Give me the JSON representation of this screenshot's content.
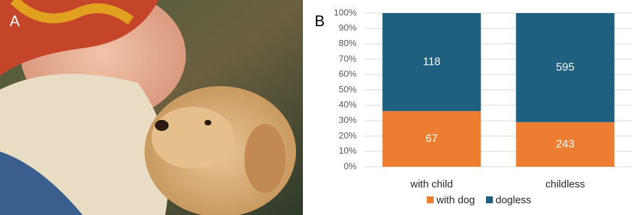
{
  "panel_labels": [
    "A",
    "B"
  ],
  "chart_data": {
    "type": "bar",
    "stacking": "percent",
    "categories": [
      "with child",
      "childless"
    ],
    "series": [
      {
        "name": "with dog",
        "color": "#ed7d31",
        "values": [
          67,
          243
        ]
      },
      {
        "name": "dogless",
        "color": "#1f5f80",
        "values": [
          118,
          595
        ]
      }
    ],
    "ylim": [
      0,
      100
    ],
    "yticks": [
      {
        "value": 0,
        "label": "0%"
      },
      {
        "value": 10,
        "label": "10%"
      },
      {
        "value": 20,
        "label": "20%"
      },
      {
        "value": 30,
        "label": "30%"
      },
      {
        "value": 40,
        "label": "40%"
      },
      {
        "value": 50,
        "label": "50%"
      },
      {
        "value": 60,
        "label": "60%"
      },
      {
        "value": 70,
        "label": "70%"
      },
      {
        "value": 80,
        "label": "80%"
      },
      {
        "value": 90,
        "label": "90%"
      },
      {
        "value": 100,
        "label": "100%"
      }
    ],
    "grid": true,
    "legend": "bottom"
  }
}
